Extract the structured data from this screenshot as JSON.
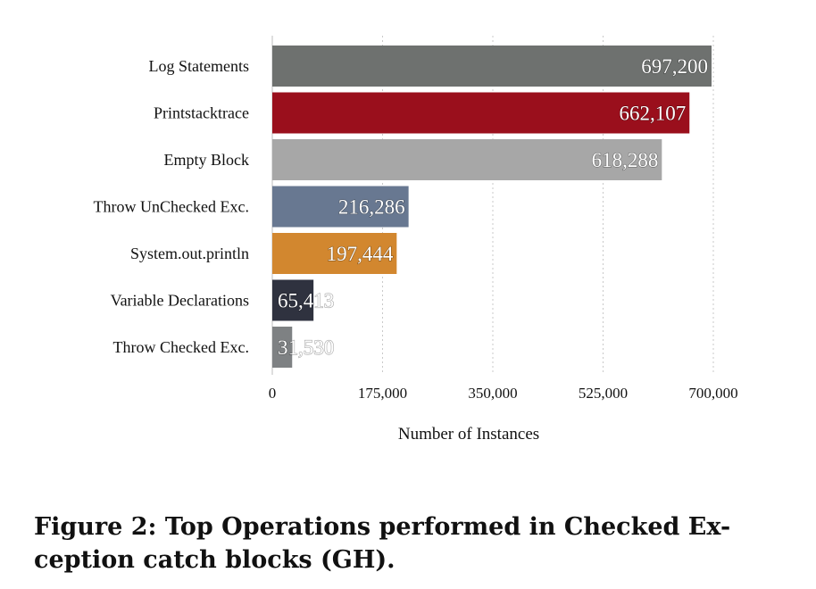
{
  "chart_data": {
    "type": "bar",
    "orientation": "horizontal",
    "categories": [
      "Log Statements",
      "Printstacktrace",
      "Empty Block",
      "Throw UnChecked Exc.",
      "System.out.println",
      "Variable Declarations",
      "Throw Checked Exc."
    ],
    "values": [
      697200,
      662107,
      618288,
      216286,
      197444,
      65413,
      31530
    ],
    "value_labels": [
      "697,200",
      "662,107",
      "618,288",
      "216,286",
      "197,444",
      "65,413",
      "31,530"
    ],
    "colors": [
      "#6e716f",
      "#9a0f1c",
      "#a7a7a7",
      "#687891",
      "#d2872f",
      "#2f323f",
      "#7e8183"
    ],
    "xlabel": "Number of Instances",
    "ylabel": "",
    "xlim": [
      0,
      700000
    ],
    "xticks": [
      0,
      175000,
      350000,
      525000,
      700000
    ],
    "xtick_labels": [
      "0",
      "175,000",
      "350,000",
      "525,000",
      "700,000"
    ],
    "grid": true
  },
  "caption": {
    "line1": "Figure 2:  Top Operations performed in Checked Ex-",
    "line2": "ception catch blocks (GH)."
  }
}
